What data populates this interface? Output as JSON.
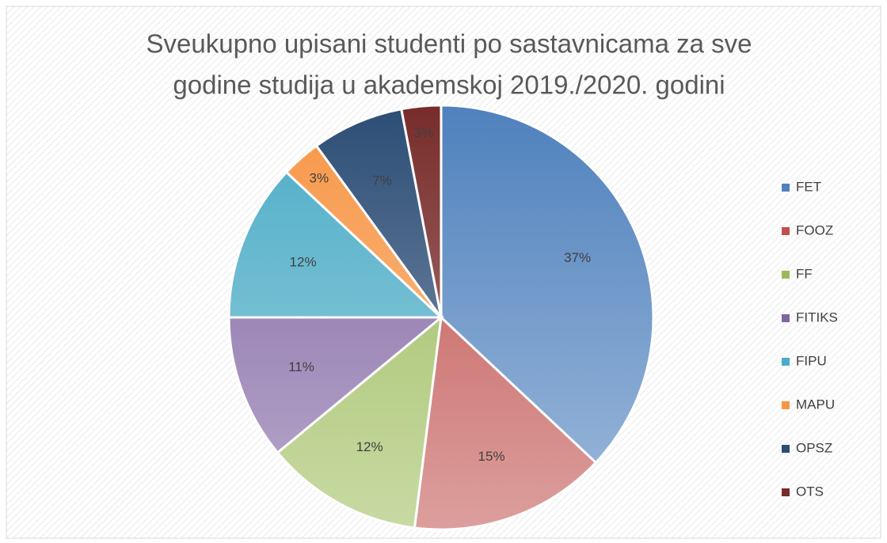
{
  "chart_data": {
    "type": "pie",
    "title": [
      "Sveukupno upisani studenti po sastavnicama za sve",
      "godine studija u akademskoj 2019./2020. godini"
    ],
    "categories": [
      "FET",
      "FOOZ",
      "FF",
      "FITIKS",
      "FIPU",
      "MAPU",
      "OPSZ",
      "OTS"
    ],
    "values": [
      37,
      15,
      12,
      11,
      12,
      3,
      7,
      3
    ],
    "value_labels": [
      "37%",
      "15%",
      "12%",
      "11%",
      "12%",
      "3%",
      "7%",
      "3%"
    ],
    "colors": [
      "#4f81bd",
      "#c0504d",
      "#9bbb59",
      "#8064a2",
      "#4bacc6",
      "#f79646",
      "#2c4d75",
      "#772c2a"
    ],
    "legend": "right"
  }
}
